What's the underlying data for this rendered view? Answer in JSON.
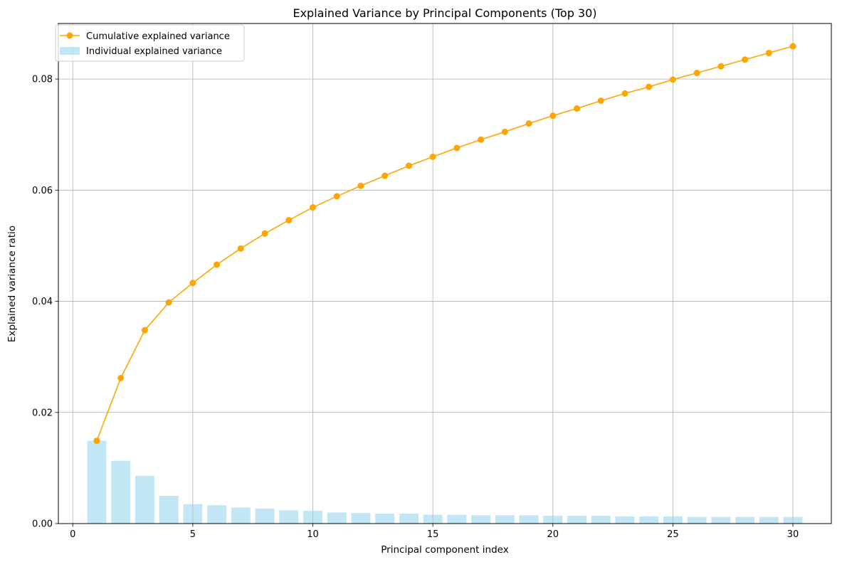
{
  "chart_data": {
    "type": "bar+line",
    "title": "Explained Variance by Principal Components (Top 30)",
    "xlabel": "Principal component index",
    "ylabel": "Explained variance ratio",
    "xlim": [
      -0.6,
      31.6
    ],
    "ylim": [
      0,
      0.09
    ],
    "xticks": [
      0,
      5,
      10,
      15,
      20,
      25,
      30
    ],
    "xtick_labels": [
      "0",
      "5",
      "10",
      "15",
      "20",
      "25",
      "30"
    ],
    "yticks": [
      0,
      0.02,
      0.04,
      0.06,
      0.08
    ],
    "ytick_labels": [
      "0.00",
      "0.02",
      "0.04",
      "0.06",
      "0.08"
    ],
    "grid": true,
    "legend_position": "top-left",
    "x": [
      1,
      2,
      3,
      4,
      5,
      6,
      7,
      8,
      9,
      10,
      11,
      12,
      13,
      14,
      15,
      16,
      17,
      18,
      19,
      20,
      21,
      22,
      23,
      24,
      25,
      26,
      27,
      28,
      29,
      30
    ],
    "series": [
      {
        "name": "Cumulative explained variance",
        "kind": "line",
        "color": "#FFA500",
        "values": [
          0.0149,
          0.0262,
          0.0348,
          0.0398,
          0.0433,
          0.0466,
          0.0495,
          0.0522,
          0.0546,
          0.0569,
          0.0589,
          0.0608,
          0.0626,
          0.0644,
          0.066,
          0.0676,
          0.0691,
          0.0705,
          0.072,
          0.0734,
          0.0747,
          0.0761,
          0.0774,
          0.0786,
          0.0799,
          0.0811,
          0.0823,
          0.0835,
          0.0847,
          0.0859
        ]
      },
      {
        "name": "Individual explained variance",
        "kind": "bar",
        "color": "#87CEEB",
        "values": [
          0.0149,
          0.0113,
          0.0086,
          0.005,
          0.0035,
          0.0033,
          0.0029,
          0.0027,
          0.0024,
          0.0023,
          0.002,
          0.0019,
          0.0018,
          0.0018,
          0.0016,
          0.0016,
          0.0015,
          0.0015,
          0.0015,
          0.0014,
          0.0014,
          0.0014,
          0.0013,
          0.0013,
          0.0013,
          0.0012,
          0.0012,
          0.0012,
          0.0012,
          0.0012
        ]
      }
    ]
  }
}
